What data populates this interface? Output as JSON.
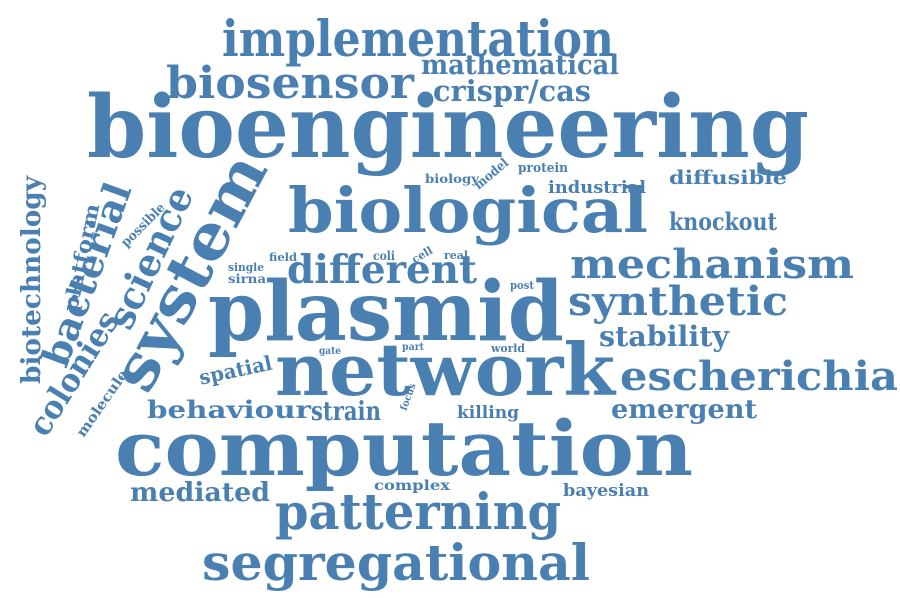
{
  "colors": {
    "word": "#4a7fb2",
    "background": "#ffffff"
  },
  "words": [
    "implementation",
    "mathematical",
    "biosensor",
    "crispr/cas",
    "bioengineering",
    "model",
    "protein",
    "biology",
    "industrial",
    "diffusible",
    "possible",
    "biotechnology",
    "platform",
    "bacterial",
    "science",
    "system",
    "biological",
    "knockout",
    "field",
    "coli",
    "cell",
    "real",
    "single",
    "sirna",
    "different",
    "mechanism",
    "post",
    "plasmid",
    "synthetic",
    "stability",
    "colonies",
    "molecule",
    "gate",
    "part",
    "world",
    "spatial",
    "network",
    "escherichia",
    "focus",
    "behaviour",
    "strain",
    "killing",
    "emergent",
    "computation",
    "mediated",
    "complex",
    "bayesian",
    "patterning",
    "segregational"
  ]
}
